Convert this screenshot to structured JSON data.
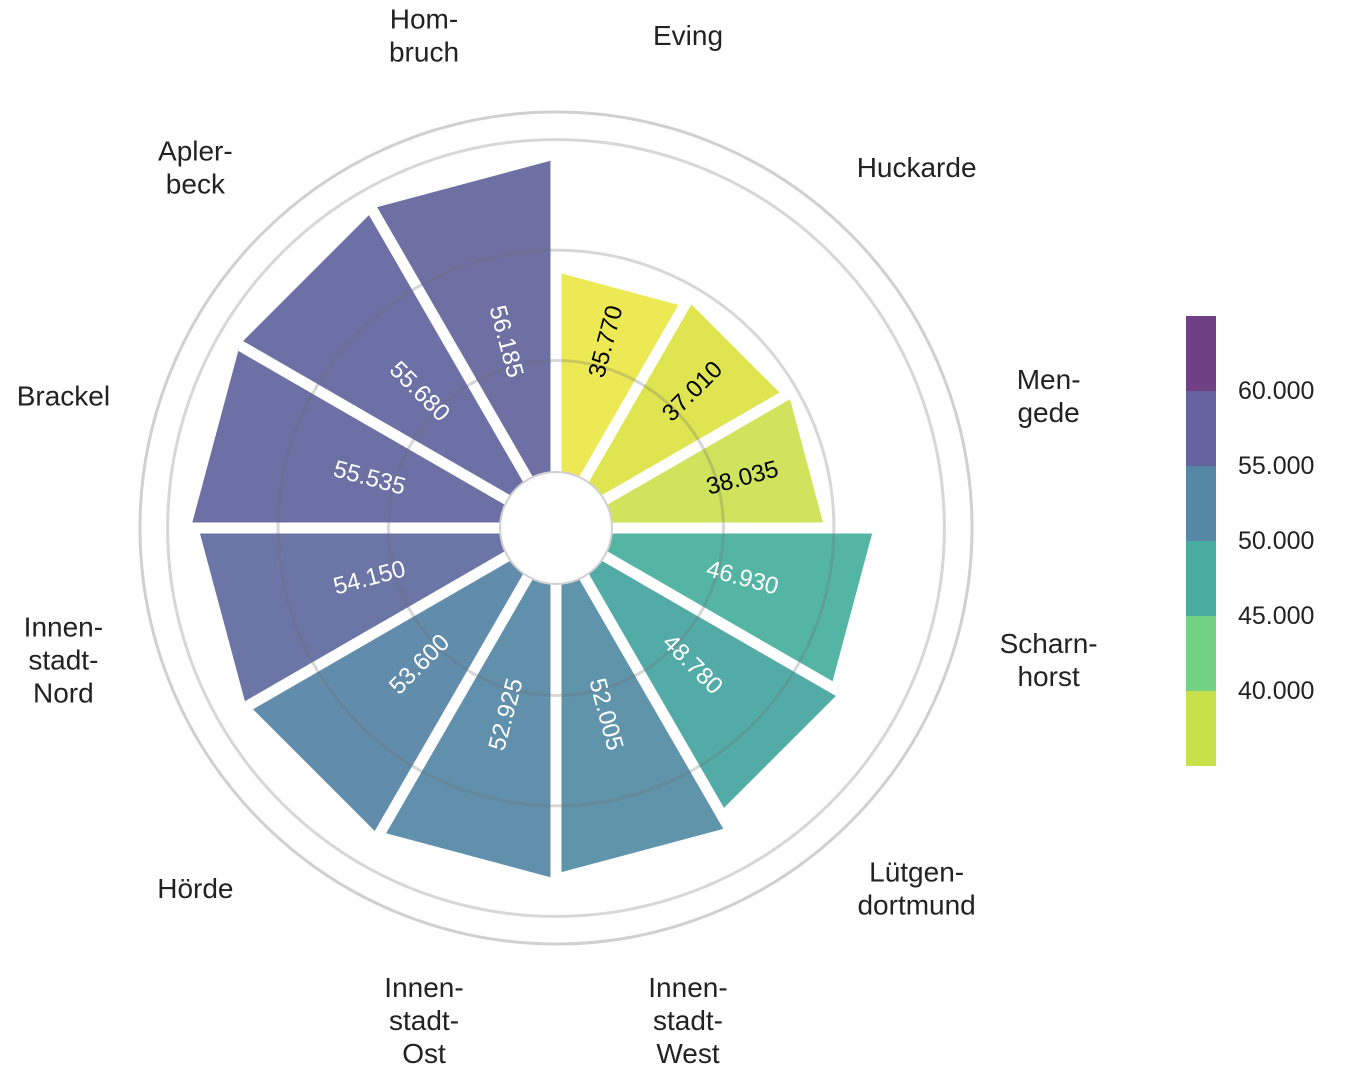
{
  "chart_data": {
    "type": "bar",
    "polar": true,
    "categories": [
      "Eving",
      "Huckarde",
      "Men-\ngede",
      "Scharn-\nhorst",
      "Lütgen-\ndortmund",
      "Innen-\nstadt-\nWest",
      "Innen-\nstadt-\nOst",
      "Hörde",
      "Innen-\nstadt-\nNord",
      "Brackel",
      "Apler-\nbeck",
      "Hom-\nbruch"
    ],
    "values": [
      35770,
      37010,
      38035,
      46930,
      48780,
      52005,
      52925,
      53600,
      54150,
      55535,
      55680,
      56185
    ],
    "value_labels": [
      "35.770",
      "37.010",
      "38.035",
      "46.930",
      "48.780",
      "52.005",
      "52.925",
      "53.600",
      "54.150",
      "55.535",
      "55.680",
      "56.185"
    ],
    "radial_range": [
      0,
      65000
    ],
    "radial_gridlines": [
      20000,
      40000,
      60000
    ],
    "outer_ring": 65000,
    "legend": {
      "placement": "right",
      "type": "binned-colorbar",
      "ticks": [
        "40.000",
        "45.000",
        "50.000",
        "55.000",
        "60.000"
      ],
      "tick_values": [
        40000,
        45000,
        50000,
        55000,
        60000
      ],
      "bins": [
        {
          "from": 35000,
          "to": 40000,
          "color": "#c8e04a"
        },
        {
          "from": 40000,
          "to": 45000,
          "color": "#73d184"
        },
        {
          "from": 45000,
          "to": 50000,
          "color": "#48ada0"
        },
        {
          "from": 50000,
          "to": 55000,
          "color": "#5688a6"
        },
        {
          "from": 55000,
          "to": 60000,
          "color": "#6663a0"
        },
        {
          "from": 60000,
          "to": 65000,
          "color": "#6f4184"
        }
      ]
    },
    "colors": {
      "bars": [
        "#ece84b",
        "#dde348",
        "#cce253",
        "#4cb19f",
        "#4aa7a2",
        "#568ea7",
        "#588aa8",
        "#5a86a7",
        "#636ea1",
        "#6468a0",
        "#6568a0",
        "#66689f"
      ],
      "value_label_colors": [
        "#000000",
        "#000000",
        "#000000",
        "#ffffff",
        "#ffffff",
        "#ffffff",
        "#ffffff",
        "#ffffff",
        "#ffffff",
        "#ffffff",
        "#ffffff",
        "#ffffff"
      ],
      "grid": "#d0d0d0"
    }
  }
}
